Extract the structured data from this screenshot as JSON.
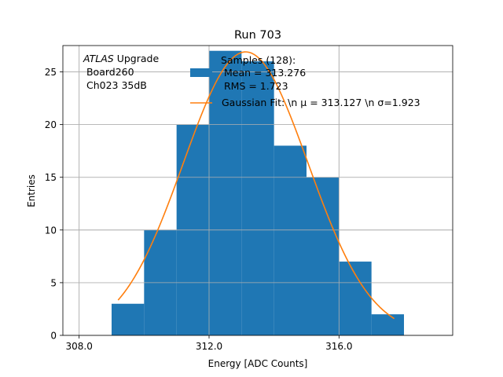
{
  "chart_data": {
    "type": "bar",
    "title": "Run 703",
    "xlabel": "Energy [ADC Counts]",
    "ylabel": "Entries",
    "xlim": [
      307.5,
      319.5
    ],
    "ylim": [
      0,
      27.5
    ],
    "grid": true,
    "x_ticks": [
      308,
      312,
      316
    ],
    "x_tick_labels": [
      "308.0",
      "312.0",
      "316.0"
    ],
    "y_ticks": [
      0,
      5,
      10,
      15,
      20,
      25
    ],
    "y_tick_labels": [
      "0",
      "5",
      "10",
      "15",
      "20",
      "25"
    ],
    "bins": [
      {
        "x0": 309,
        "x1": 310,
        "count": 3
      },
      {
        "x0": 310,
        "x1": 311,
        "count": 10
      },
      {
        "x0": 311,
        "x1": 312,
        "count": 20
      },
      {
        "x0": 312,
        "x1": 313,
        "count": 27
      },
      {
        "x0": 313,
        "x1": 314,
        "count": 26
      },
      {
        "x0": 314,
        "x1": 315,
        "count": 18
      },
      {
        "x0": 315,
        "x1": 316,
        "count": 15
      },
      {
        "x0": 316,
        "x1": 317,
        "count": 7
      },
      {
        "x0": 317,
        "x1": 318,
        "count": 2
      }
    ],
    "fit": {
      "type": "gaussian",
      "mu": 313.127,
      "sigma": 1.923,
      "amplitude": 26.9,
      "x_range": [
        309.2,
        317.7
      ]
    },
    "annotation": {
      "italic": "ATLAS",
      "rest": " Upgrade",
      "line2": " Board260",
      "line3": " Ch023 35dB"
    },
    "legend": {
      "position": "top-right",
      "hist_label": "Samples (128):",
      "hist_line2": " Mean = 313.276",
      "hist_line3": " RMS = 1.723",
      "fit_label": "Gaussian Fit: \\n μ = 313.127 \\n σ=1.923"
    },
    "colors": {
      "hist": "#1f77b4",
      "fit": "#ff7f0e",
      "grid": "#b0b0b0"
    }
  }
}
